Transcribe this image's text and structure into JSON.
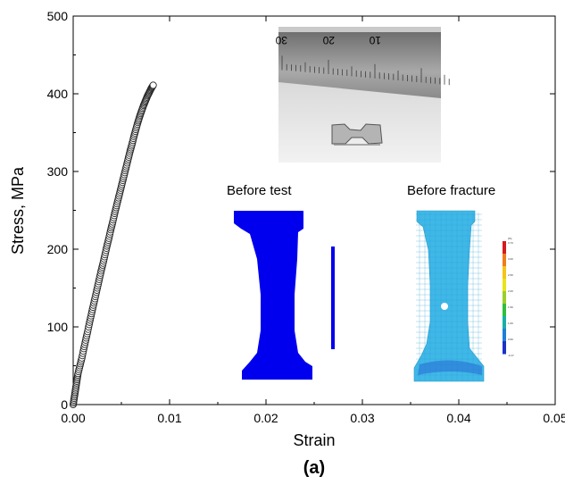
{
  "chart_data": {
    "type": "scatter",
    "xlabel": "Strain",
    "ylabel": "Stress, MPa",
    "panel_label": "(a)",
    "xlim": [
      0,
      0.05
    ],
    "ylim": [
      0,
      500
    ],
    "x_ticks": [
      0.0,
      0.01,
      0.02,
      0.03,
      0.04,
      0.05
    ],
    "x_tick_labels": [
      "0.00",
      "0.01",
      "0.02",
      "0.03",
      "0.04",
      "0.05"
    ],
    "y_ticks": [
      0,
      100,
      200,
      300,
      400,
      500
    ],
    "y_tick_labels": [
      "0",
      "100",
      "200",
      "300",
      "400",
      "500"
    ],
    "marker": "open-circle",
    "grid": false,
    "series": [
      {
        "x": [
          0.0,
          0.0001,
          0.0002,
          0.0003,
          0.0004,
          0.0005,
          0.0007,
          0.0009,
          0.0011,
          0.0013,
          0.0015,
          0.0017,
          0.0019,
          0.0021,
          0.0023,
          0.0025,
          0.0027,
          0.0029,
          0.0031,
          0.0033,
          0.0035,
          0.0037,
          0.0039,
          0.0041,
          0.0043,
          0.0045,
          0.0047,
          0.0049,
          0.0051,
          0.0053,
          0.0055,
          0.0057,
          0.0059,
          0.0061,
          0.0063,
          0.0065,
          0.0067,
          0.0069,
          0.0071,
          0.0073,
          0.0075,
          0.0077,
          0.0079,
          0.0081,
          0.0083
        ],
        "y": [
          0,
          8,
          16,
          24,
          32,
          40,
          50,
          60,
          72,
          83,
          94,
          106,
          117,
          128,
          139,
          150,
          161,
          172,
          182,
          193,
          204,
          214,
          225,
          235,
          246,
          256,
          266,
          276,
          286,
          296,
          306,
          316,
          326,
          335,
          345,
          354,
          363,
          371,
          378,
          385,
          391,
          397,
          402,
          407,
          411
        ]
      }
    ]
  },
  "insets": {
    "before_test": "Before test",
    "before_fracture": "Before fracture"
  },
  "ruler": {
    "numbers": [
      "30",
      "20",
      "10"
    ]
  },
  "legend_bar": {
    "labels": [
      "[%]",
      "3.73",
      "3.00",
      "2.50",
      "2.00",
      "1.50",
      "1.00",
      "0.50",
      "-0.17"
    ],
    "colors": [
      "#d7191c",
      "#f07c1c",
      "#f5c518",
      "#e8e418",
      "#9ccf28",
      "#2fbf3c",
      "#17b0a8",
      "#1d7fd8",
      "#1a32c8"
    ]
  },
  "colors": {
    "marker_stroke": "#222222",
    "before_test_fill": "#0000ee",
    "before_fracture_fill": "#3fb8e8",
    "photo_bg": "#dcdcdc",
    "ruler": "#9a9a9a"
  }
}
